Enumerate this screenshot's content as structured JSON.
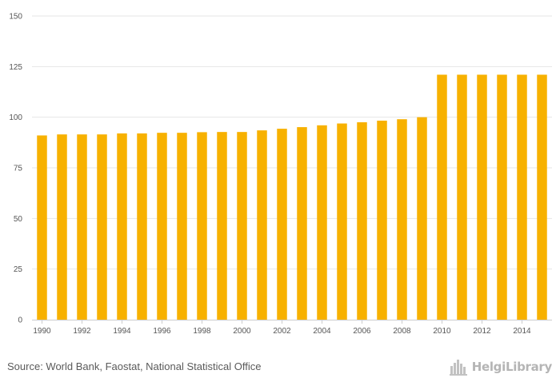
{
  "chart_data": {
    "type": "bar",
    "categories": [
      "1990",
      "1991",
      "1992",
      "1993",
      "1994",
      "1995",
      "1996",
      "1997",
      "1998",
      "1999",
      "2000",
      "2001",
      "2002",
      "2003",
      "2004",
      "2005",
      "2006",
      "2007",
      "2008",
      "2009",
      "2010",
      "2011",
      "2012",
      "2013",
      "2014",
      "2015"
    ],
    "x_tick_labels": [
      "1990",
      "1992",
      "1994",
      "1996",
      "1998",
      "2000",
      "2002",
      "2004",
      "2006",
      "2008",
      "2010",
      "2012",
      "2014"
    ],
    "values": [
      91,
      91.5,
      91.5,
      91.5,
      92,
      92,
      92.3,
      92.3,
      92.6,
      92.7,
      92.7,
      93.5,
      94.3,
      95.1,
      96,
      96.9,
      97.5,
      98.3,
      99,
      100,
      121,
      121,
      121,
      121,
      121,
      121
    ],
    "ylim": [
      0,
      150
    ],
    "yticks": [
      0,
      25,
      50,
      75,
      100,
      125,
      150
    ],
    "title": "",
    "xlabel": "",
    "ylabel": "",
    "grid": true,
    "bar_color": "#F7B100",
    "grid_color": "#e6e6e6",
    "axis_color": "#cccccc"
  },
  "footer": {
    "source": "Source: World Bank, Faostat, National Statistical Office",
    "brand": "HelgiLibrary",
    "brand_icon": "city-skyline-icon"
  }
}
